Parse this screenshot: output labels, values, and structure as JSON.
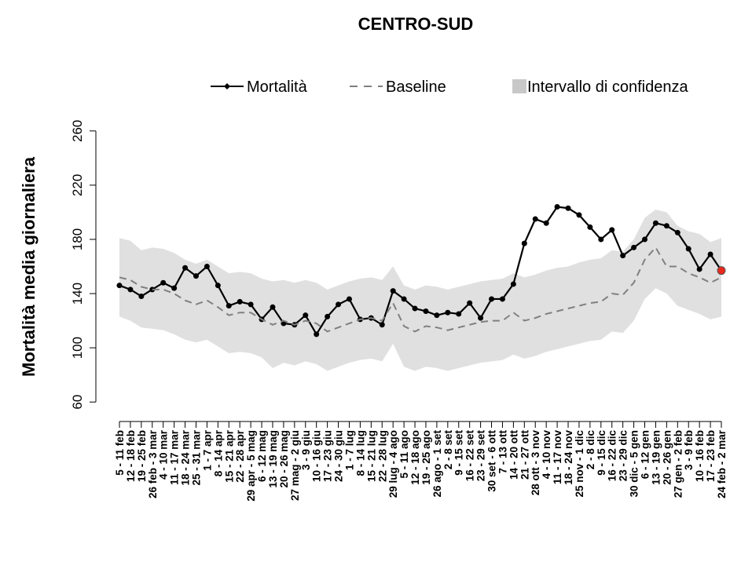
{
  "chart_data": {
    "type": "line",
    "title": "CENTRO-SUD",
    "y_label": "Mortalità media giornaliera",
    "categories": [
      "5 - 11 feb",
      "12 - 18 feb",
      "19 - 25 feb",
      "26 feb - 3 mar",
      "4 - 10 mar",
      "11 - 17 mar",
      "18 - 24 mar",
      "25 - 31 mar",
      "1 - 7 apr",
      "8 - 14 apr",
      "15 - 21 apr",
      "22 - 28 apr",
      "29 apr - 5 mag",
      "6 - 12 mag",
      "13 - 19 mag",
      "20 - 26 mag",
      "27 mag - 2 giu",
      "3 - 9 giu",
      "10 - 16 giu",
      "17 - 23 giu",
      "24 - 30 giu",
      "1 - 7 lug",
      "8 - 14 lug",
      "15 - 21 lug",
      "22 - 28 lug",
      "29 lug - 4 ago",
      "5 - 11 ago",
      "12 - 18 ago",
      "19 - 25 ago",
      "26 ago - 1 set",
      "2 - 8 set",
      "9 - 15 set",
      "16 - 22 set",
      "23 - 29 set",
      "30 set - 6 ott",
      "7 - 13 ott",
      "14 - 20 ott",
      "21 - 27 ott",
      "28 ott - 3 nov",
      "4 - 10 nov",
      "11 - 17 nov",
      "18 - 24 nov",
      "25 nov - 1 dic",
      "2 - 8 dic",
      "9 - 15 dic",
      "16 - 22 dic",
      "23 - 29 dic",
      "30 dic - 5 gen",
      "6 - 12 gen",
      "13 - 19 gen",
      "20 - 26 gen",
      "27 gen - 2 feb",
      "3 - 9 feb",
      "10 - 16 feb",
      "17 - 23 feb",
      "24 feb - 2 mar"
    ],
    "series": [
      {
        "name": "Mortalità",
        "color": "#000000",
        "dash": false,
        "marker": true,
        "values": [
          146,
          143,
          138,
          143,
          148,
          144,
          159,
          153,
          160,
          146,
          131,
          134,
          132,
          121,
          130,
          118,
          117,
          124,
          110,
          123,
          132,
          136,
          121,
          122,
          117,
          142,
          136,
          129,
          127,
          124,
          126,
          125,
          133,
          122,
          136,
          136,
          147,
          177,
          195,
          192,
          204,
          203,
          198,
          189,
          180,
          187,
          168,
          174,
          180,
          192,
          190,
          185,
          173,
          158,
          169,
          157
        ]
      },
      {
        "name": "Baseline",
        "color": "#808080",
        "dash": true,
        "marker": false,
        "values": [
          152,
          150,
          145,
          143,
          143,
          140,
          135,
          132,
          135,
          130,
          124,
          126,
          126,
          121,
          117,
          120,
          117,
          120,
          118,
          112,
          115,
          118,
          121,
          122,
          120,
          133,
          116,
          112,
          116,
          115,
          113,
          115,
          117,
          119,
          120,
          120,
          126,
          120,
          122,
          125,
          127,
          129,
          131,
          133,
          134,
          140,
          139,
          148,
          165,
          174,
          160,
          160,
          155,
          152,
          148,
          152
        ]
      }
    ],
    "confidence_interval": {
      "name": "Intervallo di confidenza",
      "color": "#e0e0e0",
      "upper": [
        181,
        179,
        172,
        174,
        173,
        170,
        165,
        162,
        165,
        160,
        155,
        156,
        155,
        151,
        149,
        150,
        148,
        150,
        148,
        143,
        146,
        149,
        151,
        152,
        150,
        160,
        146,
        143,
        146,
        145,
        143,
        145,
        147,
        149,
        150,
        151,
        155,
        152,
        154,
        157,
        159,
        160,
        163,
        165,
        166,
        172,
        171,
        180,
        196,
        202,
        200,
        190,
        186,
        184,
        178,
        181
      ],
      "lower": [
        123,
        120,
        115,
        114,
        113,
        110,
        106,
        104,
        106,
        101,
        96,
        97,
        96,
        93,
        85,
        89,
        87,
        90,
        88,
        83,
        86,
        89,
        91,
        92,
        90,
        103,
        86,
        83,
        86,
        85,
        83,
        85,
        87,
        89,
        90,
        91,
        95,
        92,
        94,
        97,
        99,
        101,
        103,
        105,
        106,
        112,
        111,
        120,
        136,
        144,
        140,
        131,
        128,
        125,
        121,
        123
      ]
    },
    "last_point_color": "#e8291c",
    "ylim": [
      52,
      268
    ],
    "yticks": [
      60,
      100,
      140,
      180,
      220,
      260
    ],
    "legend": "top"
  }
}
